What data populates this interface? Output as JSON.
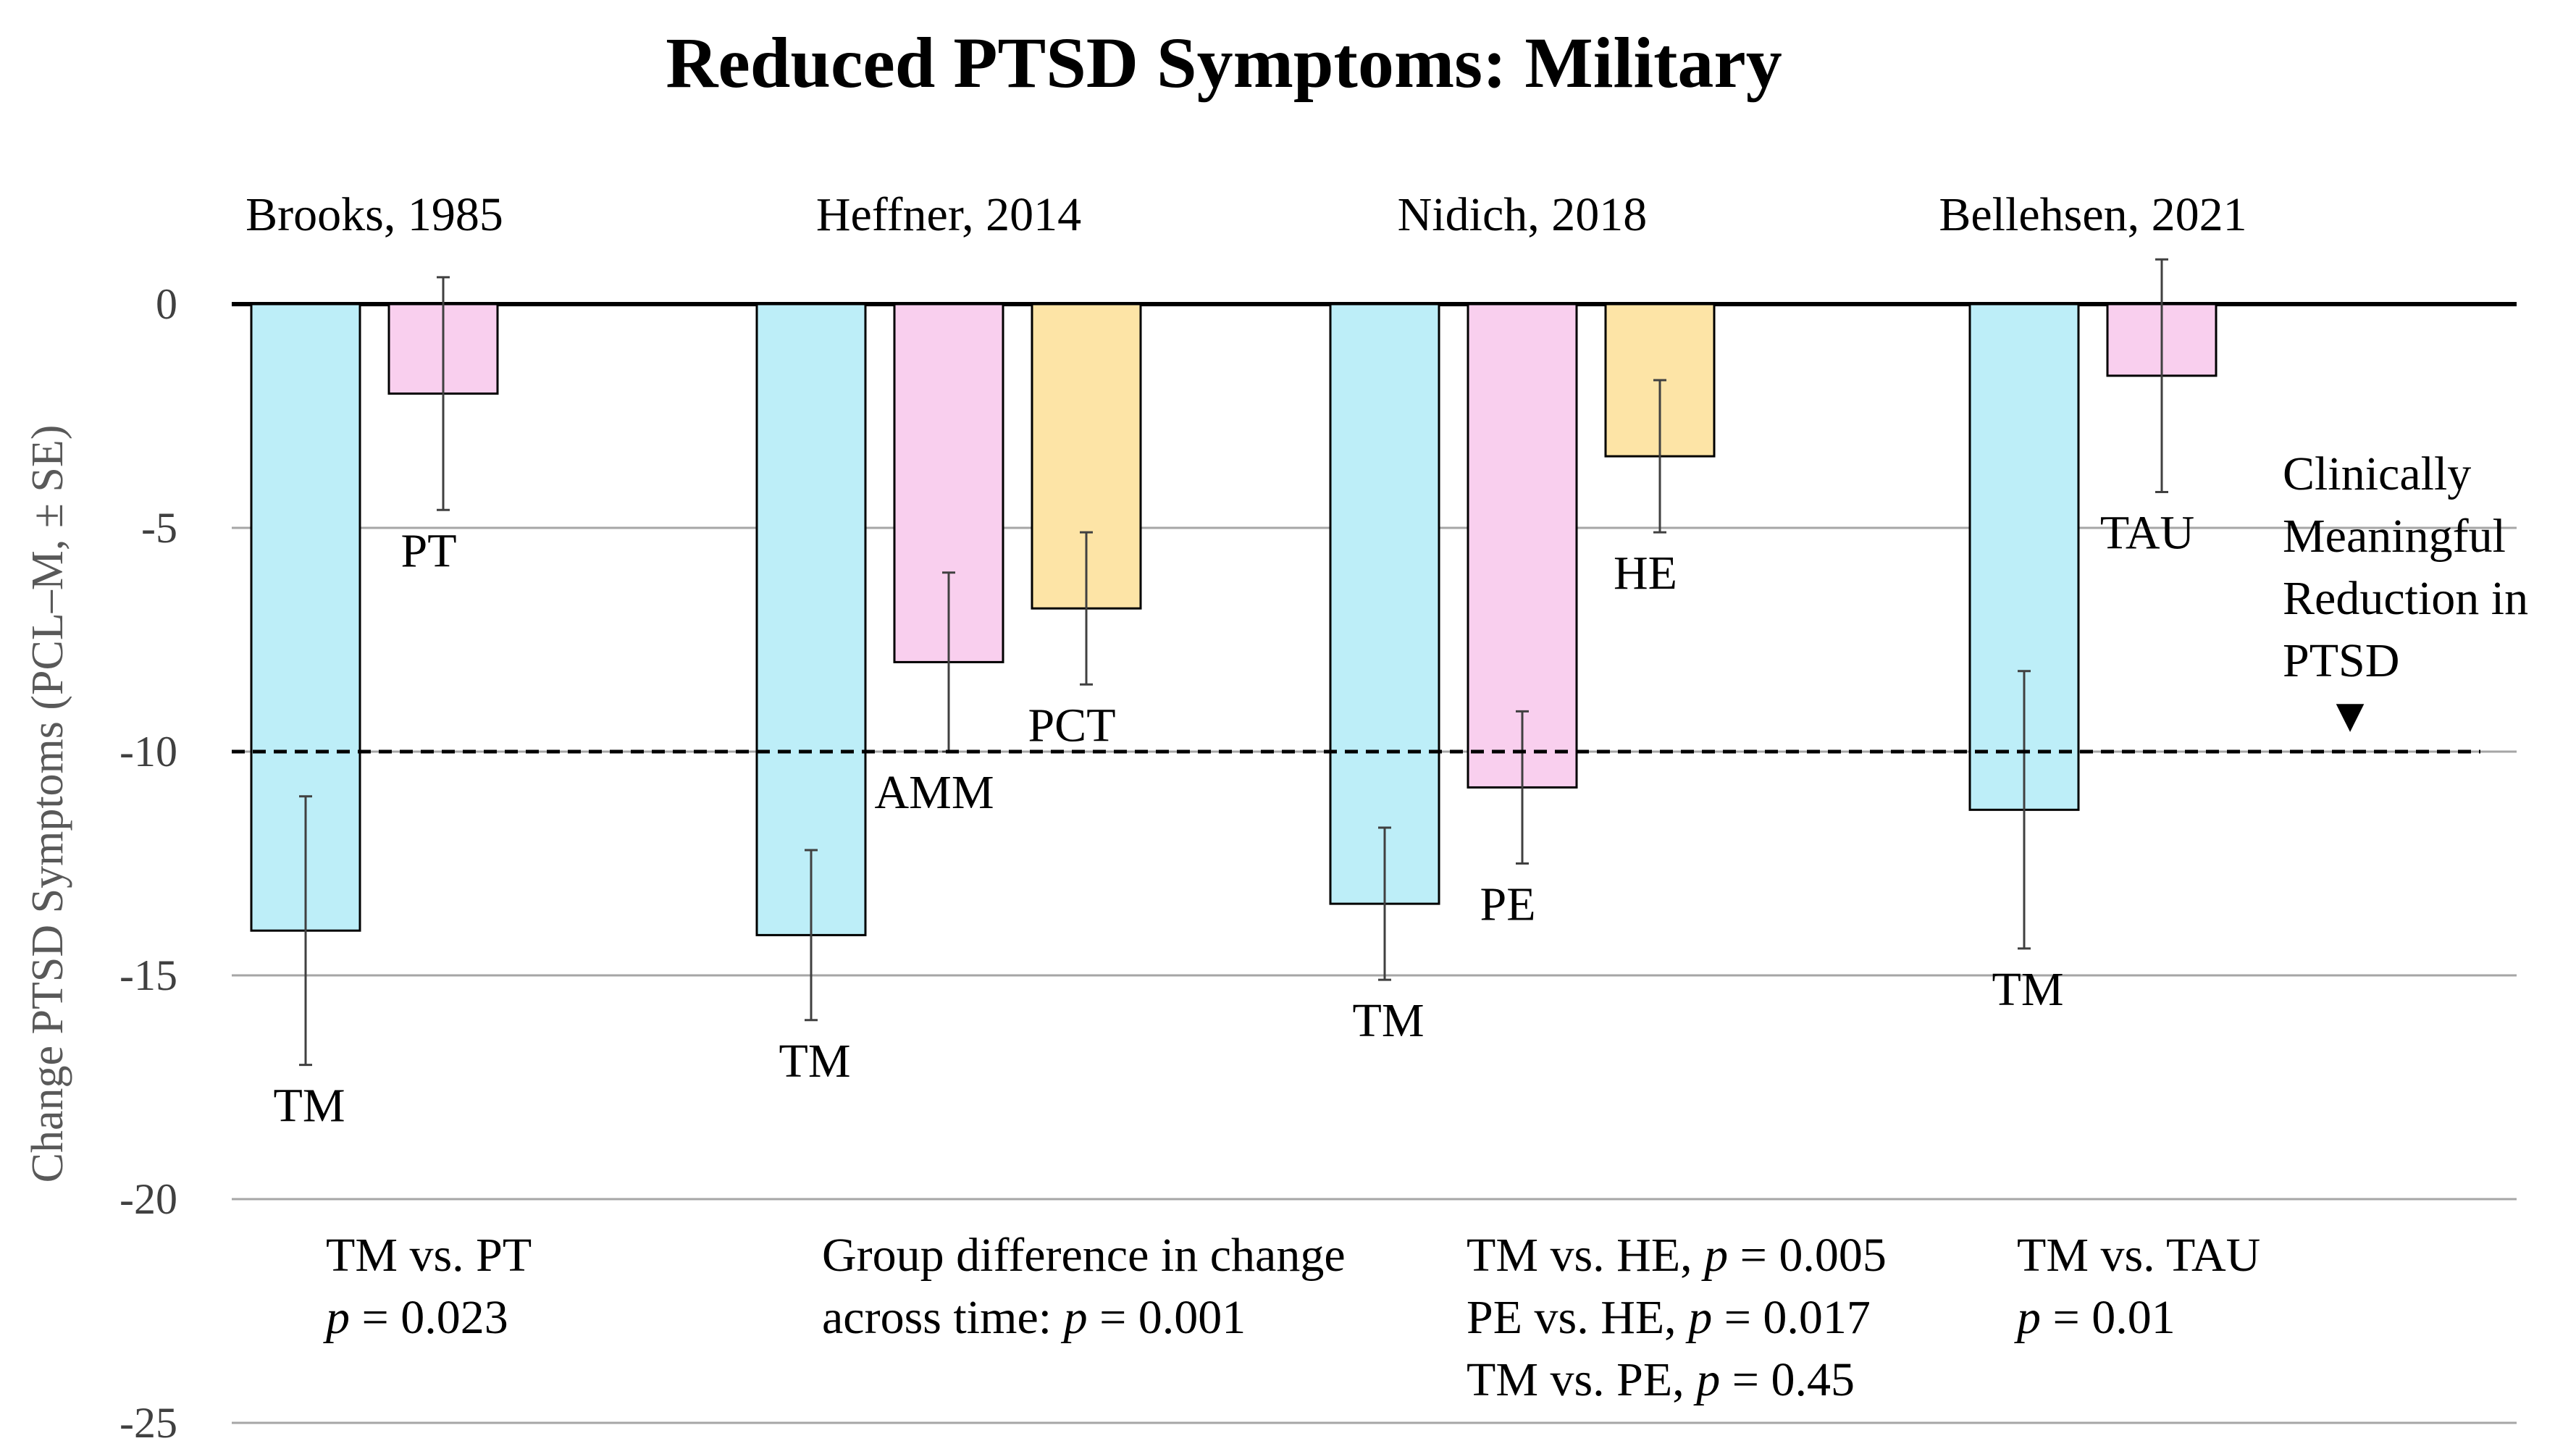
{
  "chart_data": {
    "type": "bar",
    "title": "Reduced PTSD Symptoms: Military",
    "ylabel": "Change PTSD Symptoms (PCL–M, ± SE)",
    "xlabel": "",
    "ylim": [
      -25,
      0
    ],
    "yticks": [
      0,
      -5,
      -10,
      -15,
      -20,
      -25
    ],
    "grid": true,
    "reference_line": {
      "value": -10,
      "label": [
        "Clinically",
        "Meaningful",
        "Reduction in",
        "PTSD"
      ],
      "marker": "▼"
    },
    "colors": {
      "TM": "#bdeef8",
      "control": "#f9cfee",
      "active": "#fde4a6",
      "edge": "#000000"
    },
    "studies": [
      {
        "name": "Brooks, 1985",
        "groups": [
          {
            "label": "TM",
            "value": -14.0,
            "se": 3.0,
            "color": "TM",
            "label_side": "below"
          },
          {
            "label": "PT",
            "value": -2.0,
            "se": 2.6,
            "color": "control",
            "label_side": "below"
          }
        ],
        "stats": [
          {
            "lead": "TM vs. PT",
            "p": ""
          },
          {
            "lead": "",
            "p": "= 0.023"
          }
        ]
      },
      {
        "name": "Heffner, 2014",
        "groups": [
          {
            "label": "TM",
            "value": -14.1,
            "se": 1.9,
            "color": "TM",
            "label_side": "below"
          },
          {
            "label": "AMM",
            "value": -8.0,
            "se": 2.0,
            "color": "control",
            "label_side": "below"
          },
          {
            "label": "PCT",
            "value": -6.8,
            "se": 1.7,
            "color": "active",
            "label_side": "below"
          }
        ],
        "stats": [
          {
            "lead": "Group difference in change",
            "p": ""
          },
          {
            "lead": "across time:",
            "p": "= 0.001"
          }
        ]
      },
      {
        "name": "Nidich, 2018",
        "groups": [
          {
            "label": "TM",
            "value": -13.4,
            "se": 1.7,
            "color": "TM",
            "label_side": "below"
          },
          {
            "label": "PE",
            "value": -10.8,
            "se": 1.7,
            "color": "control",
            "label_side": "below"
          },
          {
            "label": "HE",
            "value": -3.4,
            "se": 1.7,
            "color": "active",
            "label_side": "below"
          }
        ],
        "stats": [
          {
            "lead": "TM vs. HE,",
            "p": "= 0.005"
          },
          {
            "lead": "PE vs. HE,",
            "p": "= 0.017"
          },
          {
            "lead": "TM vs. PE,",
            "p": "= 0.45"
          }
        ]
      },
      {
        "name": "Bellehsen, 2021",
        "groups": [
          {
            "label": "TM",
            "value": -11.3,
            "se": 3.1,
            "color": "TM",
            "label_side": "below"
          },
          {
            "label": "TAU",
            "value": -1.6,
            "se": 2.6,
            "color": "control",
            "label_side": "below"
          }
        ],
        "stats": [
          {
            "lead": "TM vs. TAU",
            "p": ""
          },
          {
            "lead": "",
            "p": "= 0.01"
          }
        ]
      }
    ]
  }
}
